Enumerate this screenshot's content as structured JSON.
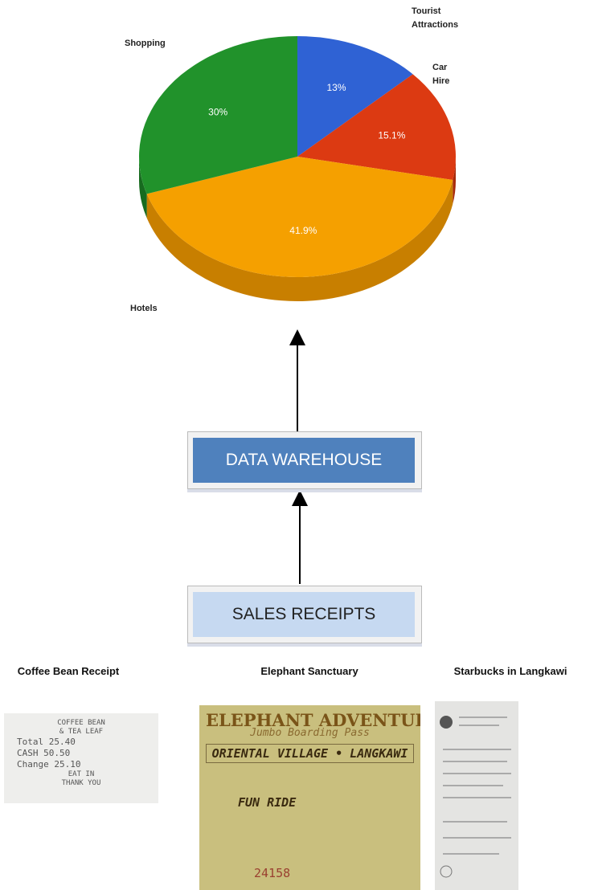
{
  "chart_data": {
    "type": "pie",
    "categories": [
      "Tourist Attractions",
      "Car Hire",
      "Hotels",
      "Shopping"
    ],
    "values": [
      13,
      15.1,
      41.9,
      30
    ],
    "value_labels": [
      "13%",
      "15.1%",
      "41.9%",
      "30%"
    ],
    "colors": [
      "#2f62d4",
      "#dc3a12",
      "#f5a000",
      "#21922b"
    ],
    "side_colors": [
      "#1f48a8",
      "#a82a0a",
      "#c87f00",
      "#176b1f"
    ]
  },
  "diagram": {
    "nodes": [
      {
        "label": "DATA WAREHOUSE"
      },
      {
        "label": "SALES RECEIPTS"
      }
    ],
    "receipts": [
      {
        "caption": "Coffee Bean Receipt",
        "lines": [
          "COFFEE BEAN",
          "& TEA LEAF",
          "Total  25.40",
          "CASH   50.50",
          "Change 25.10",
          "EAT IN",
          "THANK YOU"
        ]
      },
      {
        "caption": "Elephant Sanctuary",
        "lines": [
          "ELEPHANT ADVENTURES",
          "Jumbo Boarding Pass",
          "ORIENTAL VILLAGE • LANGKAWI",
          "FUN RIDE",
          "24158"
        ]
      },
      {
        "caption": "Starbucks in Langkawi",
        "lines": []
      }
    ]
  }
}
